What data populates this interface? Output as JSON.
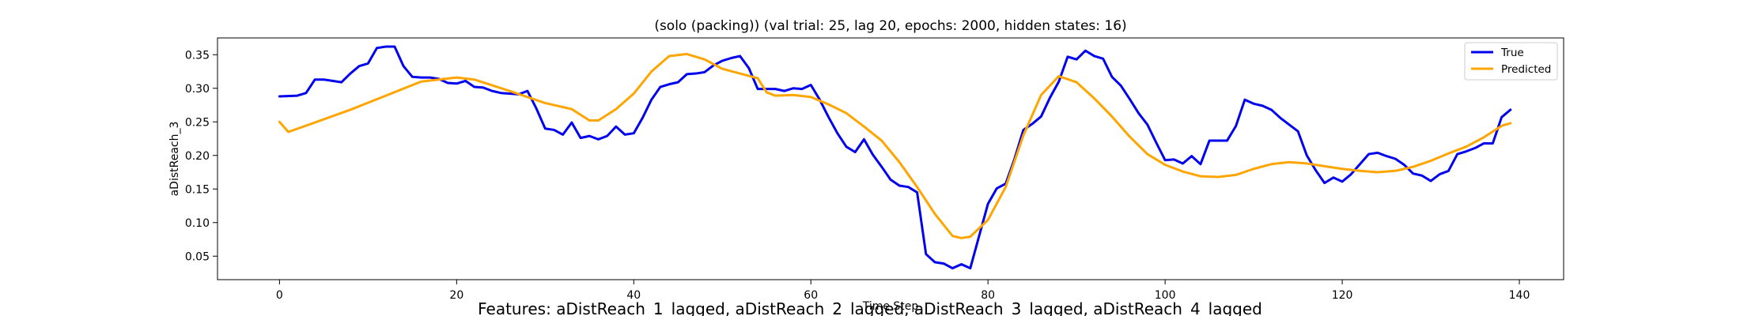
{
  "chart_data": {
    "type": "line",
    "title": "(solo (packing)) (val trial: 25, lag 20, epochs: 2000, hidden states: 16)",
    "xlabel": "Time Step",
    "ylabel": "aDistReach_3",
    "xlim": [
      -7,
      145
    ],
    "ylim": [
      0.015,
      0.375
    ],
    "xticks": [
      0,
      20,
      40,
      60,
      80,
      100,
      120,
      140
    ],
    "yticks": [
      0.05,
      0.1,
      0.15,
      0.2,
      0.25,
      0.3,
      0.35
    ],
    "grid": false,
    "legend": "top-right",
    "footer": "Features: aDistReach_1_lagged, aDistReach_2_lagged, aDistReach_3_lagged, aDistReach_4_lagged",
    "series": [
      {
        "name": "True",
        "color": "#0000ee",
        "points": [
          [
            0,
            0.288
          ],
          [
            2,
            0.289
          ],
          [
            3,
            0.293
          ],
          [
            4,
            0.313
          ],
          [
            5,
            0.313
          ],
          [
            6,
            0.311
          ],
          [
            7,
            0.309
          ],
          [
            8,
            0.322
          ],
          [
            9,
            0.333
          ],
          [
            10,
            0.337
          ],
          [
            11,
            0.36
          ],
          [
            12,
            0.362
          ],
          [
            13,
            0.362
          ],
          [
            14,
            0.333
          ],
          [
            15,
            0.317
          ],
          [
            16,
            0.316
          ],
          [
            17,
            0.316
          ],
          [
            18,
            0.314
          ],
          [
            19,
            0.308
          ],
          [
            20,
            0.307
          ],
          [
            21,
            0.311
          ],
          [
            22,
            0.302
          ],
          [
            23,
            0.301
          ],
          [
            24,
            0.296
          ],
          [
            25,
            0.293
          ],
          [
            26,
            0.292
          ],
          [
            27,
            0.291
          ],
          [
            28,
            0.296
          ],
          [
            29,
            0.27
          ],
          [
            30,
            0.24
          ],
          [
            31,
            0.238
          ],
          [
            32,
            0.231
          ],
          [
            33,
            0.249
          ],
          [
            34,
            0.226
          ],
          [
            35,
            0.229
          ],
          [
            36,
            0.224
          ],
          [
            37,
            0.229
          ],
          [
            38,
            0.243
          ],
          [
            39,
            0.231
          ],
          [
            40,
            0.233
          ],
          [
            41,
            0.256
          ],
          [
            42,
            0.283
          ],
          [
            43,
            0.302
          ],
          [
            44,
            0.306
          ],
          [
            45,
            0.309
          ],
          [
            46,
            0.321
          ],
          [
            47,
            0.322
          ],
          [
            48,
            0.324
          ],
          [
            49,
            0.334
          ],
          [
            50,
            0.341
          ],
          [
            51,
            0.345
          ],
          [
            52,
            0.348
          ],
          [
            53,
            0.33
          ],
          [
            54,
            0.299
          ],
          [
            55,
            0.299
          ],
          [
            56,
            0.299
          ],
          [
            57,
            0.296
          ],
          [
            58,
            0.3
          ],
          [
            59,
            0.299
          ],
          [
            60,
            0.305
          ],
          [
            61,
            0.283
          ],
          [
            62,
            0.257
          ],
          [
            63,
            0.233
          ],
          [
            64,
            0.213
          ],
          [
            65,
            0.205
          ],
          [
            66,
            0.224
          ],
          [
            67,
            0.201
          ],
          [
            68,
            0.183
          ],
          [
            69,
            0.164
          ],
          [
            70,
            0.155
          ],
          [
            71,
            0.153
          ],
          [
            72,
            0.145
          ],
          [
            73,
            0.053
          ],
          [
            74,
            0.041
          ],
          [
            75,
            0.039
          ],
          [
            76,
            0.032
          ],
          [
            77,
            0.038
          ],
          [
            78,
            0.032
          ],
          [
            79,
            0.08
          ],
          [
            80,
            0.128
          ],
          [
            81,
            0.151
          ],
          [
            82,
            0.158
          ],
          [
            83,
            0.195
          ],
          [
            84,
            0.238
          ],
          [
            85,
            0.247
          ],
          [
            86,
            0.258
          ],
          [
            87,
            0.286
          ],
          [
            88,
            0.31
          ],
          [
            89,
            0.347
          ],
          [
            90,
            0.343
          ],
          [
            91,
            0.356
          ],
          [
            92,
            0.348
          ],
          [
            93,
            0.344
          ],
          [
            94,
            0.317
          ],
          [
            95,
            0.304
          ],
          [
            96,
            0.284
          ],
          [
            97,
            0.263
          ],
          [
            98,
            0.246
          ],
          [
            99,
            0.219
          ],
          [
            100,
            0.193
          ],
          [
            101,
            0.194
          ],
          [
            102,
            0.188
          ],
          [
            103,
            0.199
          ],
          [
            104,
            0.187
          ],
          [
            105,
            0.222
          ],
          [
            106,
            0.222
          ],
          [
            107,
            0.222
          ],
          [
            108,
            0.244
          ],
          [
            109,
            0.283
          ],
          [
            110,
            0.277
          ],
          [
            111,
            0.274
          ],
          [
            112,
            0.268
          ],
          [
            113,
            0.256
          ],
          [
            114,
            0.246
          ],
          [
            115,
            0.236
          ],
          [
            116,
            0.2
          ],
          [
            117,
            0.178
          ],
          [
            118,
            0.159
          ],
          [
            119,
            0.167
          ],
          [
            120,
            0.161
          ],
          [
            121,
            0.172
          ],
          [
            122,
            0.187
          ],
          [
            123,
            0.202
          ],
          [
            124,
            0.204
          ],
          [
            125,
            0.199
          ],
          [
            126,
            0.195
          ],
          [
            127,
            0.186
          ],
          [
            128,
            0.173
          ],
          [
            129,
            0.17
          ],
          [
            130,
            0.162
          ],
          [
            131,
            0.172
          ],
          [
            132,
            0.177
          ],
          [
            133,
            0.202
          ],
          [
            134,
            0.206
          ],
          [
            135,
            0.211
          ],
          [
            136,
            0.218
          ],
          [
            137,
            0.218
          ],
          [
            138,
            0.257
          ],
          [
            139,
            0.268
          ]
        ]
      },
      {
        "name": "Predicted",
        "color": "#ffa500",
        "points": [
          [
            0,
            0.25
          ],
          [
            1,
            0.235
          ],
          [
            4,
            0.249
          ],
          [
            8,
            0.268
          ],
          [
            12,
            0.289
          ],
          [
            16,
            0.31
          ],
          [
            20,
            0.316
          ],
          [
            22,
            0.313
          ],
          [
            26,
            0.296
          ],
          [
            30,
            0.278
          ],
          [
            33,
            0.269
          ],
          [
            35,
            0.252
          ],
          [
            36,
            0.252
          ],
          [
            38,
            0.269
          ],
          [
            40,
            0.292
          ],
          [
            42,
            0.325
          ],
          [
            44,
            0.348
          ],
          [
            46,
            0.351
          ],
          [
            48,
            0.343
          ],
          [
            50,
            0.329
          ],
          [
            52,
            0.322
          ],
          [
            54,
            0.315
          ],
          [
            55,
            0.294
          ],
          [
            56,
            0.289
          ],
          [
            58,
            0.29
          ],
          [
            60,
            0.287
          ],
          [
            62,
            0.276
          ],
          [
            64,
            0.263
          ],
          [
            66,
            0.243
          ],
          [
            68,
            0.222
          ],
          [
            70,
            0.19
          ],
          [
            72,
            0.153
          ],
          [
            74,
            0.113
          ],
          [
            76,
            0.08
          ],
          [
            77,
            0.077
          ],
          [
            78,
            0.079
          ],
          [
            80,
            0.104
          ],
          [
            82,
            0.153
          ],
          [
            84,
            0.23
          ],
          [
            86,
            0.29
          ],
          [
            88,
            0.318
          ],
          [
            90,
            0.309
          ],
          [
            92,
            0.285
          ],
          [
            94,
            0.258
          ],
          [
            96,
            0.228
          ],
          [
            98,
            0.202
          ],
          [
            100,
            0.186
          ],
          [
            102,
            0.176
          ],
          [
            104,
            0.169
          ],
          [
            106,
            0.168
          ],
          [
            108,
            0.171
          ],
          [
            110,
            0.18
          ],
          [
            112,
            0.187
          ],
          [
            114,
            0.19
          ],
          [
            116,
            0.188
          ],
          [
            118,
            0.184
          ],
          [
            120,
            0.18
          ],
          [
            122,
            0.177
          ],
          [
            124,
            0.175
          ],
          [
            126,
            0.177
          ],
          [
            128,
            0.183
          ],
          [
            130,
            0.192
          ],
          [
            132,
            0.203
          ],
          [
            134,
            0.213
          ],
          [
            136,
            0.227
          ],
          [
            138,
            0.244
          ],
          [
            139,
            0.248
          ]
        ]
      }
    ]
  }
}
